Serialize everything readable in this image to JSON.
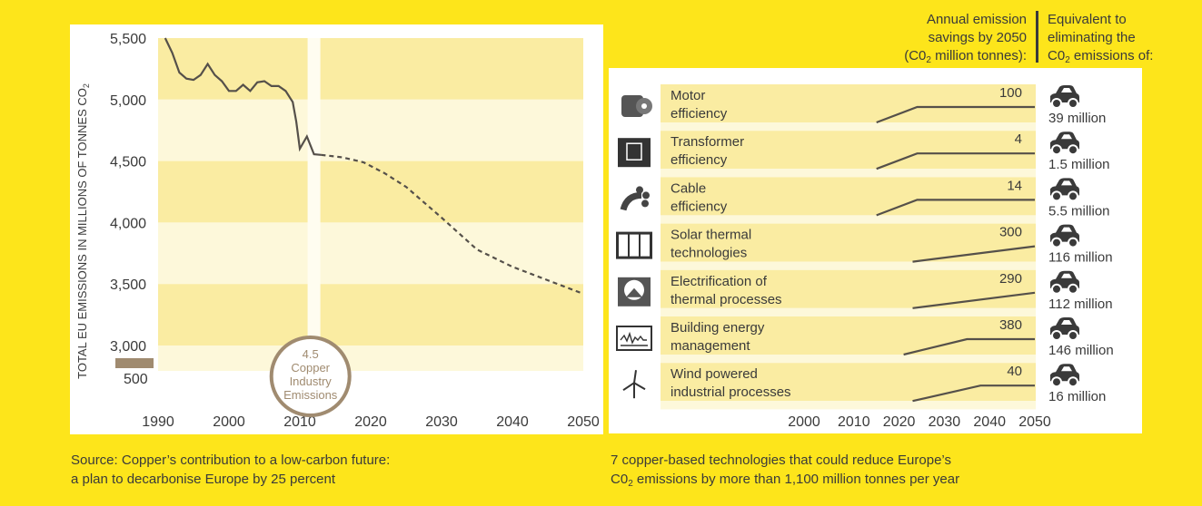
{
  "chart_data": [
    {
      "type": "line",
      "ylabel": "TOTAL EU EMISSIONS IN MILLIONS OF TONNES CO",
      "ylabel_sub": "2",
      "x_ticks": [
        "1990",
        "2000",
        "2010",
        "2020",
        "2030",
        "2040",
        "2050"
      ],
      "y_ticks": [
        "5,500",
        "5,000",
        "4,500",
        "4,000",
        "3,500",
        "3,000"
      ],
      "y_break_tick": "500",
      "xlim": [
        1990,
        2050
      ],
      "ylim": [
        3000,
        5500
      ],
      "series": [
        {
          "style": "historical",
          "points": [
            [
              1991,
              5500
            ],
            [
              1992,
              5380
            ],
            [
              1993,
              5220
            ],
            [
              1994,
              5170
            ],
            [
              1995,
              5160
            ],
            [
              1996,
              5200
            ],
            [
              1997,
              5290
            ],
            [
              1998,
              5200
            ],
            [
              1999,
              5150
            ],
            [
              2000,
              5070
            ],
            [
              2001,
              5070
            ],
            [
              2002,
              5120
            ],
            [
              2003,
              5070
            ],
            [
              2004,
              5140
            ],
            [
              2005,
              5150
            ],
            [
              2006,
              5110
            ],
            [
              2007,
              5110
            ],
            [
              2008,
              5070
            ],
            [
              2009,
              4980
            ],
            [
              2009.5,
              4820
            ],
            [
              2010,
              4600
            ],
            [
              2011,
              4700
            ],
            [
              2012,
              4555
            ],
            [
              2013,
              4550
            ]
          ]
        },
        {
          "style": "projected",
          "points": [
            [
              2013,
              4550
            ],
            [
              2016,
              4530
            ],
            [
              2019,
              4490
            ],
            [
              2022,
              4400
            ],
            [
              2025,
              4290
            ],
            [
              2030,
              4040
            ],
            [
              2035,
              3780
            ],
            [
              2040,
              3640
            ],
            [
              2045,
              3530
            ],
            [
              2050,
              3420
            ]
          ]
        }
      ],
      "annotation": {
        "lines": [
          "4.5",
          "Copper",
          "Industry",
          "Emissions"
        ],
        "x": 2011.5,
        "value": 4.5
      },
      "highlight_year": 2012
    },
    {
      "type": "line",
      "x_ticks": [
        "2000",
        "2010",
        "2020",
        "2030",
        "2040",
        "2050"
      ],
      "xlim": [
        2000,
        2050
      ],
      "header_savings": [
        "Annual emission",
        "savings by 2050",
        "(C0",
        "2",
        " million tonnes):"
      ],
      "header_equiv": [
        "Equivalent to",
        "eliminating the",
        "C0",
        "2",
        " emissions of:"
      ],
      "rows": [
        {
          "label": [
            "Motor",
            "efficiency"
          ],
          "value": "100",
          "equiv": "39 million",
          "icon": "motor-icon",
          "points": [
            [
              2015,
              0.0
            ],
            [
              2024,
              1.0
            ],
            [
              2050,
              1.0
            ]
          ]
        },
        {
          "label": [
            "Transformer",
            "efficiency"
          ],
          "value": "4",
          "equiv": "1.5 million",
          "icon": "transformer-icon",
          "points": [
            [
              2015,
              0.0
            ],
            [
              2024,
              1.0
            ],
            [
              2050,
              1.0
            ]
          ]
        },
        {
          "label": [
            "Cable",
            "efficiency"
          ],
          "value": "14",
          "equiv": "5.5 million",
          "icon": "cable-icon",
          "points": [
            [
              2015,
              0.0
            ],
            [
              2024,
              1.0
            ],
            [
              2050,
              1.0
            ]
          ]
        },
        {
          "label": [
            "Solar thermal",
            "technologies"
          ],
          "value": "300",
          "equiv": "116 million",
          "icon": "solar-panel-icon",
          "points": [
            [
              2023,
              0.0
            ],
            [
              2050,
              1.0
            ]
          ]
        },
        {
          "label": [
            "Electrification of",
            "thermal processes"
          ],
          "value": "290",
          "equiv": "112 million",
          "icon": "furnace-icon",
          "points": [
            [
              2023,
              0.0
            ],
            [
              2050,
              1.0
            ]
          ]
        },
        {
          "label": [
            "Building energy",
            "management"
          ],
          "value": "380",
          "equiv": "146 million",
          "icon": "monitor-graph-icon",
          "points": [
            [
              2021,
              0.0
            ],
            [
              2035,
              1.0
            ],
            [
              2050,
              1.0
            ]
          ]
        },
        {
          "label": [
            "Wind powered",
            "industrial processes"
          ],
          "value": "40",
          "equiv": "16 million",
          "icon": "wind-turbine-icon",
          "points": [
            [
              2023,
              0.0
            ],
            [
              2038,
              1.0
            ],
            [
              2050,
              1.0
            ]
          ]
        }
      ]
    }
  ],
  "colors": {
    "background": "#fde51b",
    "band_dark": "#faeca2",
    "band_light": "#fdf8da",
    "line": "#55504a",
    "copper": "#a08b70",
    "car": "#3a3a3a"
  },
  "captions": {
    "left": [
      "Source: Copper’s contribution to a low-carbon future:",
      "a plan to decarbonise Europe by 25 percent"
    ],
    "right_1": "7 copper-based technologies that could reduce Europe’s",
    "right_2_pre": "C0",
    "right_2_sub": "2",
    "right_2_post": " emissions by more than 1,100 million tonnes per year"
  }
}
